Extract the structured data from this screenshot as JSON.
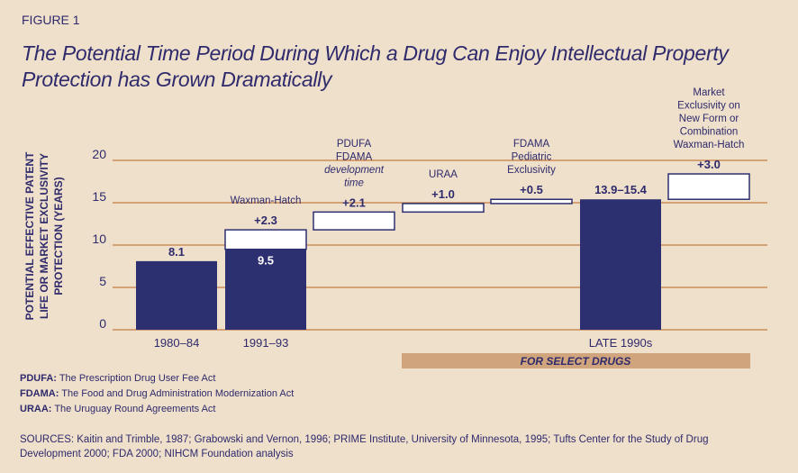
{
  "figure_label": "FIGURE 1",
  "title": "The Potential Time Period During Which a Drug Can Enjoy Intellectual Property Protection has Grown Dramatically",
  "colors": {
    "background": "#efe0cc",
    "bar": "#2d3070",
    "text": "#2e2a6b",
    "grid": "#b8651d",
    "band": "#d0a47d"
  },
  "chart_data": {
    "type": "bar",
    "subtype": "waterfall",
    "ylabel_lines": [
      "POTENTIAL EFFECTIVE PATENT",
      "LIFE OR MARKET EXCLUSIVITY",
      "PROTECTION (YEARS)"
    ],
    "ylim": [
      0,
      20
    ],
    "yticks": [
      "0",
      "5",
      "10",
      "15",
      "20"
    ],
    "bars": [
      {
        "id": "1980-84",
        "kind": "solid",
        "start": 0,
        "end": 8.1,
        "value_label": "8.1",
        "value_label_pos": "above",
        "category": "1980–84",
        "annotation": []
      },
      {
        "id": "1991-93",
        "kind": "solid",
        "start": 0,
        "end": 9.5,
        "value_label": "9.5",
        "value_label_pos": "inside",
        "category": "1991–93",
        "annotation": []
      },
      {
        "id": "waxman-hatch-1",
        "kind": "increment",
        "start": 9.5,
        "end": 11.8,
        "value_label": "+2.3",
        "value_label_pos": "above",
        "category": "",
        "annotation": [
          "Waxman-Hatch"
        ]
      },
      {
        "id": "pdufa-fdama",
        "kind": "increment",
        "start": 11.8,
        "end": 13.9,
        "value_label": "+2.1",
        "value_label_pos": "above",
        "category": "",
        "annotation": [
          "PDUFA",
          "FDAMA",
          "development",
          "time"
        ]
      },
      {
        "id": "uraa",
        "kind": "increment",
        "start": 13.9,
        "end": 14.9,
        "value_label": "+1.0",
        "value_label_pos": "above",
        "category": "",
        "annotation": [
          "URAA"
        ]
      },
      {
        "id": "fdama-pediatric",
        "kind": "increment",
        "start": 14.9,
        "end": 15.4,
        "value_label": "+0.5",
        "value_label_pos": "above",
        "category": "",
        "annotation": [
          "FDAMA",
          "Pediatric",
          "Exclusivity"
        ]
      },
      {
        "id": "late-1990s",
        "kind": "solid",
        "start": 0,
        "end": 15.4,
        "value_label": "13.9–15.4",
        "value_label_pos": "above",
        "category": "LATE 1990s",
        "annotation": []
      },
      {
        "id": "waxman-hatch-2",
        "kind": "increment",
        "start": 15.4,
        "end": 18.4,
        "value_label": "+3.0",
        "value_label_pos": "above",
        "category": "",
        "annotation": [
          "Market",
          "Exclusivity on",
          "New Form or",
          "Combination",
          "Waxman-Hatch"
        ]
      }
    ],
    "band_label": "FOR SELECT DRUGS"
  },
  "abbreviations": [
    {
      "term": "PDUFA:",
      "definition": "The Prescription Drug User Fee Act"
    },
    {
      "term": "FDAMA:",
      "definition": "The Food and Drug Administration Modernization Act"
    },
    {
      "term": "URAA:",
      "definition": "The Uruguay Round Agreements Act"
    }
  ],
  "sources": "SOURCES: Kaitin and Trimble, 1987; Grabowski and Vernon, 1996; PRIME Institute, University of Minnesota, 1995; Tufts Center for the Study of Drug Development 2000; FDA 2000;  NIHCM Foundation analysis"
}
